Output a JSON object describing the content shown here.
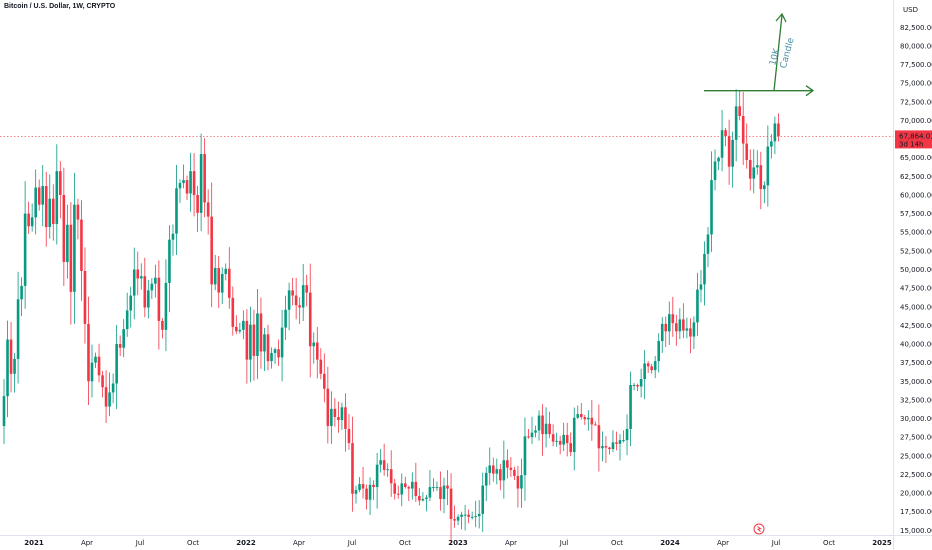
{
  "chart_data": {
    "type": "candlestick",
    "title": "Bitcoin / U.S. Dollar, 1W, CRYPTO",
    "currency_label": "USD",
    "x_ticks": [
      "2021",
      "Apr",
      "Jul",
      "Oct",
      "2022",
      "Apr",
      "Jul",
      "Oct",
      "2023",
      "Apr",
      "Jul",
      "Oct",
      "2024",
      "Apr",
      "Jul",
      "Oct",
      "2025"
    ],
    "y_ticks": [
      "15,000.00",
      "17,500.00",
      "20,000.00",
      "22,500.00",
      "25,000.00",
      "27,500.00",
      "30,000.00",
      "32,500.00",
      "35,000.00",
      "37,500.00",
      "40,000.00",
      "42,500.00",
      "45,000.00",
      "47,500.00",
      "50,000.00",
      "52,500.00",
      "55,000.00",
      "57,500.00",
      "60,000.00",
      "62,500.00",
      "65,000.00",
      "67,500.00",
      "70,000.00",
      "72,500.00",
      "75,000.00",
      "77,500.00",
      "80,000.00",
      "82,500.00"
    ],
    "y_range": [
      14500,
      85500
    ],
    "last_price": {
      "value": 67864.01,
      "label": "67,864.01",
      "sub_label": "3d 14h",
      "color": "#f23645"
    },
    "colors": {
      "up": "#089981",
      "down": "#f23645",
      "annotation": "#2e7d32",
      "annotation_text": "#4a90a4"
    },
    "annotation": {
      "text": "10K\nCandle",
      "level": 74000
    },
    "weekly_closes": [
      33000,
      40600,
      36000,
      38000,
      46000,
      47800,
      57500,
      55800,
      57000,
      61000,
      58700,
      61200,
      55700,
      59500,
      56100,
      63200,
      60000,
      51000,
      56000,
      47000,
      58700,
      56700,
      49800,
      42700,
      35000,
      37500,
      38300,
      35800,
      34200,
      31600,
      33500,
      34700,
      40000,
      39500,
      42000,
      44500,
      46500,
      50000,
      48800,
      49100,
      44900,
      47200,
      48100,
      48900,
      43100,
      41900,
      48200,
      54000,
      54800,
      60900,
      61600,
      62000,
      60200,
      63200,
      60000,
      57600,
      65500,
      59000,
      57100,
      48000,
      50200,
      46900,
      49400,
      50100,
      46200,
      42300,
      41700,
      41900,
      43100,
      37900,
      42600,
      38400,
      44100,
      39000,
      41300,
      37700,
      38800,
      39300,
      38200,
      42200,
      44600,
      47200,
      46500,
      45200,
      44900,
      47900,
      46900,
      39700,
      40200,
      37900,
      36000,
      34000,
      29000,
      31300,
      30200,
      29800,
      31500,
      28600,
      26700,
      19900,
      20400,
      21200,
      20600,
      19100,
      21100,
      20800,
      23800,
      24400,
      23100,
      23200,
      21300,
      19900,
      19800,
      21300,
      20800,
      20600,
      21500,
      19600,
      19000,
      19200,
      19400,
      20800,
      20800,
      20800,
      19200,
      21000,
      20600,
      16500,
      16300,
      16800,
      17100,
      17100,
      16800,
      16800,
      16900,
      17200,
      21000,
      22700,
      23700,
      22600,
      23200,
      21700,
      24400,
      23400,
      23100,
      22300,
      20600,
      22400,
      27600,
      27500,
      28100,
      28400,
      30400,
      27900,
      29300,
      27900,
      26900,
      27000,
      26500,
      27800,
      26700,
      25500,
      30100,
      30600,
      30200,
      29900,
      30100,
      29200,
      29100,
      26000,
      26300,
      26100,
      25900,
      26800,
      26600,
      27100,
      27100,
      28600,
      34500,
      34500,
      34300,
      35300,
      37400,
      37000,
      36500,
      37700,
      40400,
      42700,
      41700,
      44000,
      42800,
      41700,
      43300,
      41800,
      42100,
      41000,
      42900,
      47300,
      48000,
      52100,
      54700,
      62000,
      64500,
      65000,
      68700,
      67900,
      63800,
      67400,
      71900,
      70600,
      66900,
      64700,
      62200,
      63700,
      64000,
      60800,
      61300,
      66500,
      67200,
      69600,
      67900
    ],
    "hot_ticks": {}
  }
}
